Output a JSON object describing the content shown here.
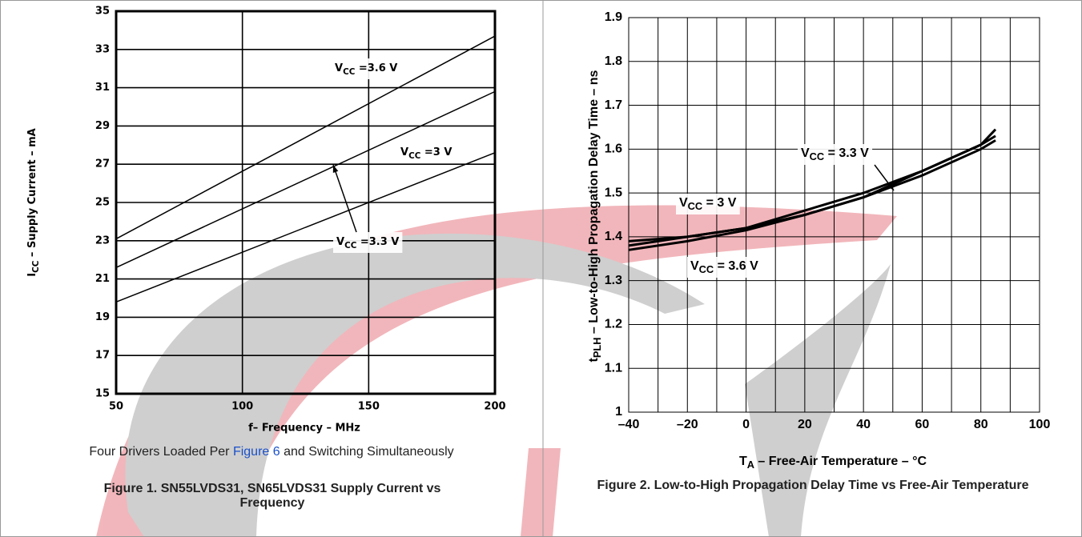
{
  "chart_data": [
    {
      "type": "line",
      "xlabel": "f– Frequency – MHz",
      "ylabel": {
        "main": "I",
        "sub": "CC",
        "rest": " – Supply Current – mA"
      },
      "xlim": [
        50,
        200
      ],
      "xticks": [
        50,
        100,
        150,
        200
      ],
      "ylim": [
        15,
        35
      ],
      "yticks": [
        15,
        17,
        19,
        21,
        23,
        25,
        27,
        29,
        31,
        33,
        35
      ],
      "grid": true,
      "color": "#000000",
      "series": [
        {
          "x": [
            50,
            200
          ],
          "values": [
            23.1,
            33.7
          ],
          "label": {
            "main": "V",
            "sub": "CC",
            "rest": " =3.6 V"
          }
        },
        {
          "x": [
            50,
            200
          ],
          "values": [
            19.8,
            27.6
          ],
          "label": {
            "main": "V",
            "sub": "CC",
            "rest": " =3 V"
          }
        },
        {
          "x": [
            50,
            200
          ],
          "values": [
            21.6,
            30.8
          ],
          "label": {
            "main": "V",
            "sub": "CC",
            "rest": " =3.3 V"
          }
        }
      ],
      "note": {
        "before": "Four Drivers Loaded Per ",
        "link": "Figure 6",
        "after": " and Switching Simultaneously"
      },
      "caption": "Figure 1. SN55LVDS31, SN65LVDS31 Supply Current vs Frequency"
    },
    {
      "type": "line",
      "xlabel": {
        "main": "T",
        "sub": "A",
        "rest": " – Free-Air Temperature – °C"
      },
      "ylabel": {
        "main": "t",
        "sub": "PLH",
        "rest": " – Low-to-High Propagation Delay Time – ns"
      },
      "xlim": [
        -40,
        100
      ],
      "xticks": [
        {
          "value": -40,
          "label": "–40"
        },
        {
          "value": -20,
          "label": "–20"
        },
        0,
        20,
        40,
        60,
        80,
        100
      ],
      "xminorticks": [
        -30,
        -10,
        10,
        30,
        50,
        70,
        90
      ],
      "ylim": [
        1,
        1.9
      ],
      "yticks": [
        1,
        1.1,
        1.2,
        1.3,
        1.4,
        1.5,
        1.6,
        1.7,
        1.8,
        1.9
      ],
      "grid": true,
      "color": "#000000",
      "series": [
        {
          "x": [
            -40,
            -20,
            0,
            20,
            40,
            60,
            80,
            85
          ],
          "values": [
            1.38,
            1.4,
            1.42,
            1.46,
            1.5,
            1.55,
            1.61,
            1.63
          ],
          "label": {
            "main": "V",
            "sub": "CC",
            "rest": " = 3.3 V"
          }
        },
        {
          "x": [
            -40,
            -20,
            0,
            20,
            40,
            60,
            80,
            85
          ],
          "values": [
            1.39,
            1.4,
            1.42,
            1.45,
            1.49,
            1.54,
            1.6,
            1.62
          ],
          "label": {
            "main": "V",
            "sub": "CC",
            "rest": " = 3 V"
          }
        },
        {
          "x": [
            -40,
            -20,
            0,
            20,
            40,
            60,
            80,
            85
          ],
          "values": [
            1.37,
            1.39,
            1.415,
            1.45,
            1.49,
            1.55,
            1.61,
            1.645
          ],
          "label": {
            "main": "V",
            "sub": "CC",
            "rest": " = 3.6 V"
          }
        }
      ],
      "caption": "Figure 2. Low-to-High Propagation Delay Time vs Free-Air Temperature"
    }
  ]
}
